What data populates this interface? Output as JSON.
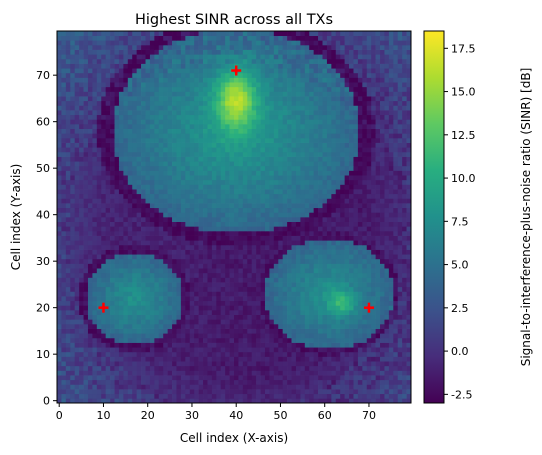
{
  "chart_data": {
    "type": "heatmap",
    "title": "Highest SINR across all TXs",
    "xlabel": "Cell index (X-axis)",
    "ylabel": "Cell index (Y-axis)",
    "colorbar_label": "Signal-to-interference-plus-noise ratio (SINR) [dB]",
    "colormap": "viridis",
    "grid": "off",
    "xlim": [
      -0.5,
      79.5
    ],
    "ylim": [
      -0.5,
      79.5
    ],
    "xticks": [
      0,
      10,
      20,
      30,
      40,
      50,
      60,
      70
    ],
    "yticks": [
      0,
      10,
      20,
      30,
      40,
      50,
      60,
      70
    ],
    "colorbar_range": [
      -3.0,
      18.5
    ],
    "colorbar_ticks": [
      "-2.5",
      "0.0",
      "2.5",
      "5.0",
      "7.5",
      "10.0",
      "12.5",
      "15.0",
      "17.5"
    ],
    "grid_size": [
      80,
      80
    ],
    "transmitters": [
      {
        "x": 10,
        "y": 20
      },
      {
        "x": 40,
        "y": 71
      },
      {
        "x": 70,
        "y": 20
      }
    ],
    "marker_color": "#ff0000",
    "regions": [
      {
        "name": "upper lobe",
        "center": [
          40,
          58
        ],
        "peak_value": 18.0
      },
      {
        "name": "lower-left lobe",
        "center": [
          15,
          22
        ],
        "peak_value": 8.0
      },
      {
        "name": "lower-right lobe",
        "center": [
          63,
          22
        ],
        "peak_value": 12.5
      }
    ]
  }
}
